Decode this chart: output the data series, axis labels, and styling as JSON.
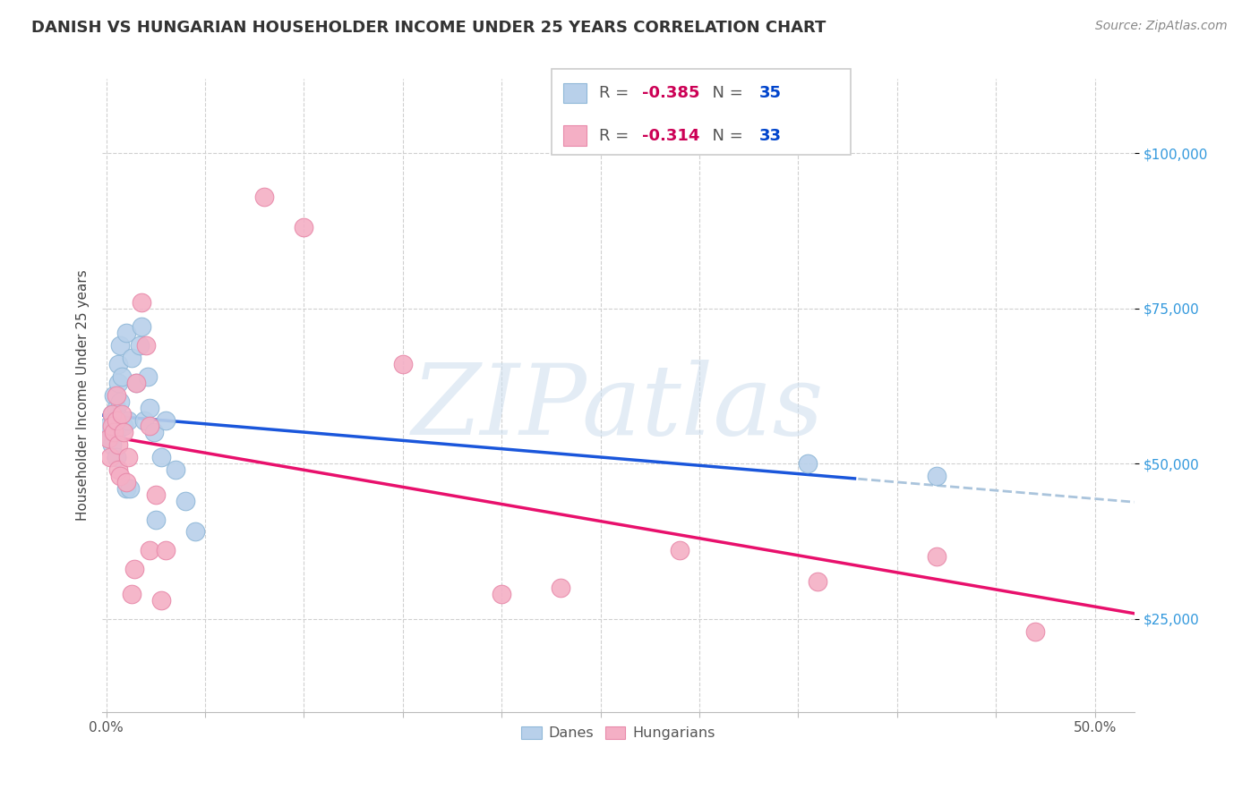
{
  "title": "DANISH VS HUNGARIAN HOUSEHOLDER INCOME UNDER 25 YEARS CORRELATION CHART",
  "source": "Source: ZipAtlas.com",
  "ylabel": "Householder Income Under 25 years",
  "ytick_values": [
    25000,
    50000,
    75000,
    100000
  ],
  "ymin": 10000,
  "ymax": 112000,
  "xmin": -0.002,
  "xmax": 0.52,
  "danes_color": "#b8d0ea",
  "hungarians_color": "#f4afc5",
  "danes_edge": "#90b8d8",
  "hungarians_edge": "#e88aaa",
  "trendline_danes_color": "#1a56db",
  "trendline_hungarians_color": "#e8106c",
  "trendline_danes_dash_color": "#aac4dc",
  "danes_R": -0.385,
  "danes_N": 35,
  "hungarians_R": -0.314,
  "hungarians_N": 33,
  "legend_R_color": "#cc0055",
  "legend_N_color": "#0044cc",
  "background_color": "#ffffff",
  "grid_color": "#d0d0d0",
  "danes_x": [
    0.001,
    0.002,
    0.003,
    0.003,
    0.004,
    0.004,
    0.005,
    0.005,
    0.005,
    0.006,
    0.006,
    0.007,
    0.007,
    0.008,
    0.009,
    0.01,
    0.01,
    0.011,
    0.012,
    0.013,
    0.015,
    0.017,
    0.018,
    0.019,
    0.021,
    0.022,
    0.024,
    0.025,
    0.028,
    0.03,
    0.035,
    0.04,
    0.045,
    0.355,
    0.42
  ],
  "danes_y": [
    56000,
    54000,
    53000,
    58000,
    57000,
    61000,
    55000,
    59000,
    51000,
    63000,
    66000,
    60000,
    69000,
    64000,
    56000,
    71000,
    46000,
    57000,
    46000,
    67000,
    63000,
    69000,
    72000,
    57000,
    64000,
    59000,
    55000,
    41000,
    51000,
    57000,
    49000,
    44000,
    39000,
    50000,
    48000
  ],
  "hungarians_x": [
    0.001,
    0.002,
    0.003,
    0.003,
    0.004,
    0.005,
    0.005,
    0.006,
    0.006,
    0.007,
    0.008,
    0.009,
    0.01,
    0.011,
    0.013,
    0.014,
    0.015,
    0.018,
    0.02,
    0.022,
    0.022,
    0.025,
    0.028,
    0.03,
    0.08,
    0.1,
    0.15,
    0.2,
    0.23,
    0.29,
    0.36,
    0.42,
    0.47
  ],
  "hungarians_y": [
    54000,
    51000,
    58000,
    56000,
    55000,
    61000,
    57000,
    49000,
    53000,
    48000,
    58000,
    55000,
    47000,
    51000,
    29000,
    33000,
    63000,
    76000,
    69000,
    56000,
    36000,
    45000,
    28000,
    36000,
    93000,
    88000,
    66000,
    29000,
    30000,
    36000,
    31000,
    35000,
    23000
  ],
  "watermark_text": "ZIPatlas",
  "legend_dane_label": "Danes",
  "legend_hungarian_label": "Hungarians"
}
